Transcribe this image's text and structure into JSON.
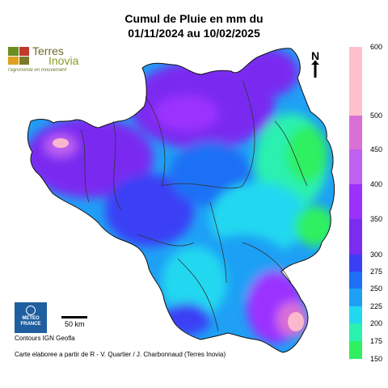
{
  "title": {
    "line1": "Cumul de Pluie en mm du",
    "line2": "01/11/2024 au 10/02/2025"
  },
  "logo": {
    "name_part1": "Terres",
    "name_part2": "Inovia",
    "tagline": "l'agronomie en mouvement",
    "colors": [
      "#6b8e23",
      "#c0392b",
      "#e0a020",
      "#7a7a2a"
    ]
  },
  "north_arrow": {
    "label": "N",
    "icon": "north-arrow-icon"
  },
  "legend": {
    "unit": "mm",
    "entries": [
      {
        "value": "600",
        "color": "#ffc0cb"
      },
      {
        "value": "500",
        "color": "#da70d6"
      },
      {
        "value": "450",
        "color": "#c060f0"
      },
      {
        "value": "400",
        "color": "#9b30ff"
      },
      {
        "value": "350",
        "color": "#7a2cf0"
      },
      {
        "value": "300",
        "color": "#3a3ff5"
      },
      {
        "value": "275",
        "color": "#1e6ff5"
      },
      {
        "value": "250",
        "color": "#1fa0f5"
      },
      {
        "value": "225",
        "color": "#22d8f0"
      },
      {
        "value": "200",
        "color": "#2af0b0"
      },
      {
        "value": "175",
        "color": "#2ef060"
      },
      {
        "value": "150",
        "color": "#20e020"
      }
    ]
  },
  "meteo_logo": {
    "line1": "METEO",
    "line2": "FRANCE",
    "icon": "meteo-france-logo-icon"
  },
  "contours": "Contours IGN Geofla",
  "scale": {
    "label": "50 km"
  },
  "credit": "Carte elaboree a partir de R - V. Quartier / J. Charbonnaud (Terres Inovia)",
  "colors": {
    "background": "#ffffff",
    "boundary": "#333333"
  }
}
